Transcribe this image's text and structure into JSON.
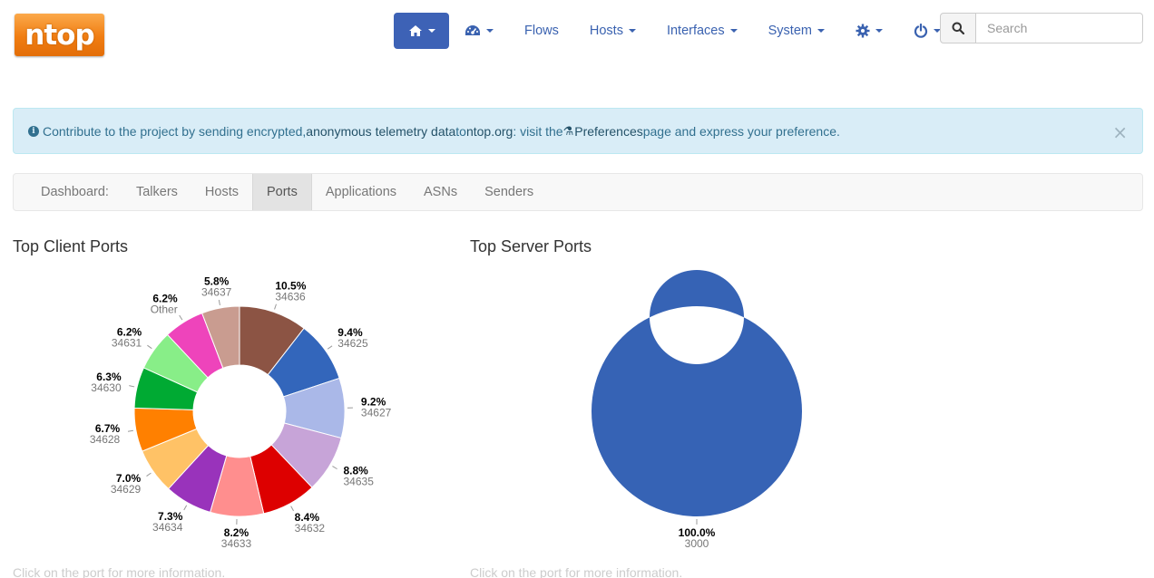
{
  "logo": {
    "text": "ntop"
  },
  "nav": {
    "home_icon": "home-icon",
    "dashboard_icon": "dashboard-icon",
    "flows": "Flows",
    "hosts": "Hosts",
    "interfaces": "Interfaces",
    "system": "System",
    "settings_icon": "gear-icon",
    "power_icon": "power-icon"
  },
  "search": {
    "placeholder": "Search"
  },
  "alert": {
    "text_before": "Contribute to the project by sending encrypted, ",
    "link1": "anonymous telemetry data",
    "text_middle": " to ",
    "link2": "ntop.org",
    "text_after1": ": visit the ",
    "link3": "Preferences",
    "text_after2": " page and express your preference.",
    "close": "×"
  },
  "tabs": {
    "label": "Dashboard:",
    "items": [
      "Talkers",
      "Hosts",
      "Ports",
      "Applications",
      "ASNs",
      "Senders"
    ],
    "active": "Ports"
  },
  "colors": {
    "accent": "#3d62b6",
    "alert_bg": "#d9edf7",
    "alert_text": "#31708f"
  },
  "client": {
    "title": "Top Client Ports",
    "hint": "Click on the port for more information."
  },
  "server": {
    "title": "Top Server Ports",
    "hint": "Click on the port for more information."
  },
  "chart_data": [
    {
      "type": "pie",
      "title": "Top Client Ports",
      "donut": true,
      "slices": [
        {
          "label": "34636",
          "pct": "10.5%",
          "value": 10.5,
          "color": "#8c5444"
        },
        {
          "label": "34625",
          "pct": "9.4%",
          "value": 9.4,
          "color": "#3366bb"
        },
        {
          "label": "34627",
          "pct": "9.2%",
          "value": 9.2,
          "color": "#aab8e8"
        },
        {
          "label": "34635",
          "pct": "8.8%",
          "value": 8.8,
          "color": "#c7a4d8"
        },
        {
          "label": "34632",
          "pct": "8.4%",
          "value": 8.4,
          "color": "#dd0000"
        },
        {
          "label": "34633",
          "pct": "8.2%",
          "value": 8.2,
          "color": "#ff8e8e"
        },
        {
          "label": "34634",
          "pct": "7.3%",
          "value": 7.3,
          "color": "#9933bb"
        },
        {
          "label": "34629",
          "pct": "7.0%",
          "value": 7.0,
          "color": "#ffc266"
        },
        {
          "label": "34628",
          "pct": "6.7%",
          "value": 6.7,
          "color": "#ff8000"
        },
        {
          "label": "34630",
          "pct": "6.3%",
          "value": 6.3,
          "color": "#00aa33"
        },
        {
          "label": "34631",
          "pct": "6.2%",
          "value": 6.2,
          "color": "#88ee88"
        },
        {
          "label": "Other",
          "pct": "6.2%",
          "value": 6.2,
          "color": "#ee44bb"
        },
        {
          "label": "34637",
          "pct": "5.8%",
          "value": 5.8,
          "color": "#c99c90"
        }
      ]
    },
    {
      "type": "pie",
      "title": "Top Server Ports",
      "donut": true,
      "slices": [
        {
          "label": "3000",
          "pct": "100.0%",
          "value": 100.0,
          "color": "#3663b5"
        }
      ]
    }
  ]
}
